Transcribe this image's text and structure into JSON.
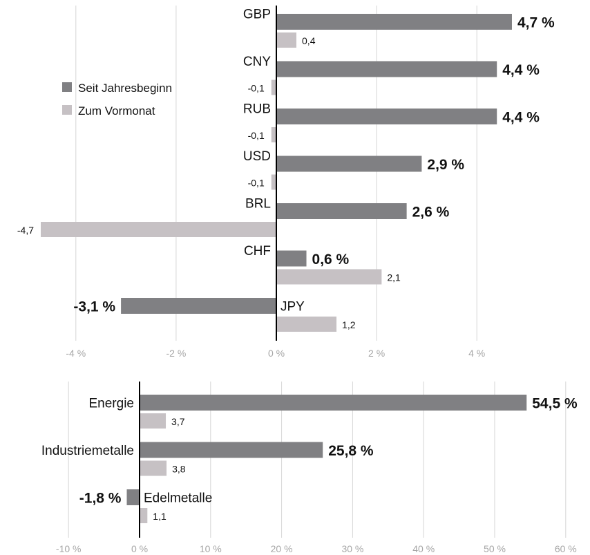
{
  "colors": {
    "primary": "#808083",
    "secondary": "#c6c1c4",
    "grid": "#d6d6d6",
    "axis": "#000000",
    "tick_text": "#a6a6a6"
  },
  "legend": [
    {
      "label": "Seit Jahresbeginn",
      "color": "#808083"
    },
    {
      "label": "Zum Vormonat",
      "color": "#c6c1c4"
    }
  ],
  "chart_data": [
    {
      "type": "bar",
      "orientation": "horizontal",
      "grid": true,
      "legend_position": "top-left",
      "xlim": [
        -5,
        5.3
      ],
      "ticks": [
        {
          "value": -4,
          "label": "-4 %"
        },
        {
          "value": -2,
          "label": "-2 %"
        },
        {
          "value": 0,
          "label": "0 %"
        },
        {
          "value": 2,
          "label": "2 %"
        },
        {
          "value": 4,
          "label": "4 %"
        }
      ],
      "categories": [
        "GBP",
        "CNY",
        "RUB",
        "USD",
        "BRL",
        "CHF",
        "JPY"
      ],
      "series": [
        {
          "name": "Seit Jahresbeginn",
          "values": [
            4.7,
            4.4,
            4.4,
            2.9,
            2.6,
            0.6,
            -3.1
          ],
          "labels": [
            "4,7 %",
            "4,4 %",
            "4,4 %",
            "2,9 %",
            "2,6 %",
            "0,6 %",
            "-3,1 %"
          ]
        },
        {
          "name": "Zum Vormonat",
          "values": [
            0.4,
            -0.1,
            -0.1,
            -0.1,
            -4.7,
            2.1,
            1.2
          ],
          "labels": [
            "0,4",
            "-0,1",
            "-0,1",
            "-0,1",
            "-4,7",
            "2,1",
            "1,2"
          ]
        }
      ]
    },
    {
      "type": "bar",
      "orientation": "horizontal",
      "grid": true,
      "xlim": [
        -13,
        63
      ],
      "ticks": [
        {
          "value": -10,
          "label": "-10 %"
        },
        {
          "value": 0,
          "label": "0 %"
        },
        {
          "value": 10,
          "label": "10 %"
        },
        {
          "value": 20,
          "label": "20 %"
        },
        {
          "value": 30,
          "label": "30 %"
        },
        {
          "value": 40,
          "label": "40 %"
        },
        {
          "value": 50,
          "label": "50 %"
        },
        {
          "value": 60,
          "label": "60 %"
        }
      ],
      "categories": [
        "Energie",
        "Industriemetalle",
        "Edelmetalle"
      ],
      "series": [
        {
          "name": "Seit Jahresbeginn",
          "values": [
            54.5,
            25.8,
            -1.8
          ],
          "labels": [
            "54,5 %",
            "25,8 %",
            "-1,8 %"
          ]
        },
        {
          "name": "Zum Vormonat",
          "values": [
            3.7,
            3.8,
            1.1
          ],
          "labels": [
            "3,7",
            "3,8",
            "1,1"
          ]
        }
      ]
    }
  ]
}
